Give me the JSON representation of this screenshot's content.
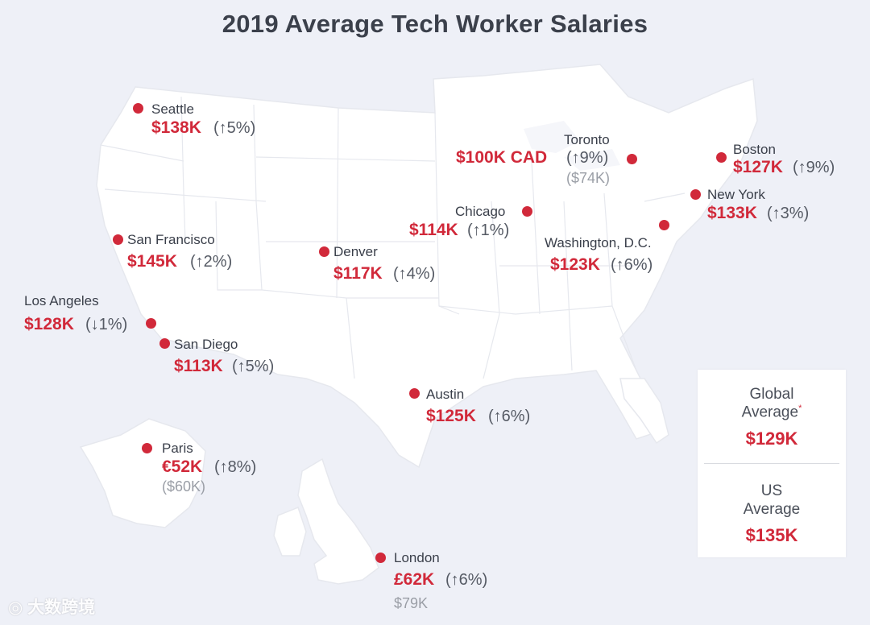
{
  "title": "2019 Average Tech Worker Salaries",
  "colors": {
    "accent": "#d1293a",
    "land": "#ffffff",
    "background": "#eef0f7",
    "border": "#e2e4ea"
  },
  "cities": [
    {
      "key": "seattle",
      "name": "Seattle",
      "salary": "$138K",
      "change": "(↑5%)"
    },
    {
      "key": "san-francisco",
      "name": "San Francisco",
      "salary": "$145K",
      "change": "(↑2%)"
    },
    {
      "key": "los-angeles",
      "name": "Los Angeles",
      "salary": "$128K",
      "change": "(↓1%)"
    },
    {
      "key": "san-diego",
      "name": "San Diego",
      "salary": "$113K",
      "change": "(↑5%)"
    },
    {
      "key": "denver",
      "name": "Denver",
      "salary": "$117K",
      "change": "(↑4%)"
    },
    {
      "key": "chicago",
      "name": "Chicago",
      "salary": "$114K",
      "change": "(↑1%)"
    },
    {
      "key": "toronto",
      "name": "Toronto",
      "salary": "$100K CAD",
      "change": "(↑9%)",
      "converted": "($74K)"
    },
    {
      "key": "boston",
      "name": "Boston",
      "salary": "$127K",
      "change": "(↑9%)"
    },
    {
      "key": "new-york",
      "name": "New York",
      "salary": "$133K",
      "change": "(↑3%)"
    },
    {
      "key": "washington-dc",
      "name": "Washington, D.C.",
      "salary": "$123K",
      "change": "(↑6%)"
    },
    {
      "key": "austin",
      "name": "Austin",
      "salary": "$125K",
      "change": "(↑6%)"
    },
    {
      "key": "paris",
      "name": "Paris",
      "salary": "€52K",
      "change": "(↑8%)",
      "converted": "($60K)"
    },
    {
      "key": "london",
      "name": "London",
      "salary": "£62K",
      "change": "(↑6%)",
      "converted": "$79K"
    }
  ],
  "averages": {
    "global": {
      "label_line1": "Global",
      "label_line2": "Average",
      "asterisk": "*",
      "value": "$129K"
    },
    "us": {
      "label_line1": "US",
      "label_line2": "Average",
      "value": "$135K"
    }
  },
  "watermark": "大数跨境"
}
